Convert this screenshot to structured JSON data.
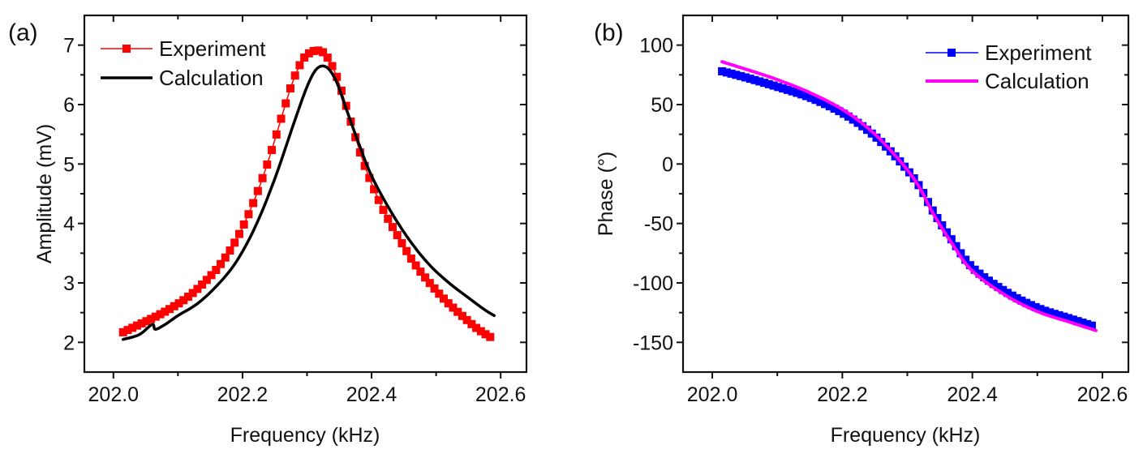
{
  "chart_data": [
    {
      "type": "line",
      "panel_label": "(a)",
      "title": "",
      "xlabel": "Frequency (kHz)",
      "ylabel": "Amplitude (mV)",
      "xlim": [
        201.955,
        202.64
      ],
      "ylim": [
        1.5,
        7.5
      ],
      "xticks": [
        202.0,
        202.2,
        202.4,
        202.6
      ],
      "xtick_labels": [
        "202.0",
        "202.2",
        "202.4",
        "202.6"
      ],
      "yticks": [
        2,
        3,
        4,
        5,
        6,
        7
      ],
      "ytick_labels": [
        "2",
        "3",
        "4",
        "5",
        "6",
        "7"
      ],
      "grid": false,
      "legend": {
        "position": "top-left",
        "entries": [
          "Experiment",
          "Calculation"
        ]
      },
      "series": [
        {
          "name": "Experiment",
          "color": "#ff0000",
          "marker": "square",
          "x": [
            202.015,
            202.04,
            202.065,
            202.09,
            202.115,
            202.14,
            202.165,
            202.19,
            202.215,
            202.24,
            202.265,
            202.28,
            202.295,
            202.31,
            202.32,
            202.33,
            202.345,
            202.36,
            202.375,
            202.39,
            202.415,
            202.44,
            202.465,
            202.49,
            202.515,
            202.54,
            202.565,
            202.59
          ],
          "y": [
            2.17,
            2.3,
            2.43,
            2.58,
            2.76,
            3.0,
            3.3,
            3.72,
            4.3,
            5.05,
            5.95,
            6.45,
            6.78,
            6.9,
            6.9,
            6.82,
            6.5,
            6.0,
            5.45,
            4.95,
            4.3,
            3.8,
            3.35,
            3.0,
            2.7,
            2.45,
            2.22,
            2.05
          ]
        },
        {
          "name": "Calculation",
          "color": "#000000",
          "marker": "none",
          "x": [
            202.015,
            202.04,
            202.06,
            202.065,
            202.08,
            202.1,
            202.13,
            202.16,
            202.19,
            202.22,
            202.25,
            202.28,
            202.3,
            202.315,
            202.33,
            202.345,
            202.36,
            202.38,
            202.4,
            202.43,
            202.46,
            202.49,
            202.52,
            202.55,
            202.575,
            202.59
          ],
          "y": [
            2.05,
            2.13,
            2.3,
            2.22,
            2.3,
            2.45,
            2.65,
            2.95,
            3.35,
            3.95,
            4.75,
            5.7,
            6.3,
            6.6,
            6.63,
            6.4,
            5.95,
            5.35,
            4.8,
            4.2,
            3.7,
            3.3,
            3.0,
            2.75,
            2.55,
            2.45
          ]
        }
      ]
    },
    {
      "type": "line",
      "panel_label": "(b)",
      "title": "",
      "xlabel": "Frequency (kHz)",
      "ylabel": "Phase (°)",
      "xlim": [
        201.955,
        202.64
      ],
      "ylim": [
        -175,
        125
      ],
      "xticks": [
        202.0,
        202.2,
        202.4,
        202.6
      ],
      "xtick_labels": [
        "202.0",
        "202.2",
        "202.4",
        "202.6"
      ],
      "yticks": [
        100,
        50,
        0,
        -50,
        -100,
        -150
      ],
      "ytick_labels": [
        "100",
        "50",
        "0",
        "-50",
        "-100",
        "-150"
      ],
      "grid": false,
      "legend": {
        "position": "top-right",
        "entries": [
          "Experiment",
          "Calculation"
        ]
      },
      "series": [
        {
          "name": "Experiment",
          "color": "#0000ff",
          "marker": "square",
          "x": [
            202.015,
            202.05,
            202.1,
            202.15,
            202.2,
            202.24,
            202.27,
            202.3,
            202.32,
            202.34,
            202.37,
            202.4,
            202.45,
            202.5,
            202.55,
            202.59
          ],
          "y": [
            78,
            73,
            65,
            56,
            43,
            28,
            13,
            -5,
            -20,
            -40,
            -65,
            -87,
            -107,
            -121,
            -130,
            -137
          ]
        },
        {
          "name": "Calculation",
          "color": "#ff00ff",
          "marker": "none",
          "x": [
            202.015,
            202.05,
            202.1,
            202.15,
            202.2,
            202.24,
            202.27,
            202.3,
            202.32,
            202.34,
            202.37,
            202.4,
            202.45,
            202.5,
            202.55,
            202.59
          ],
          "y": [
            86,
            80,
            71,
            60,
            46,
            30,
            14,
            -5,
            -21,
            -42,
            -68,
            -90,
            -110,
            -124,
            -133,
            -140
          ]
        }
      ]
    }
  ]
}
